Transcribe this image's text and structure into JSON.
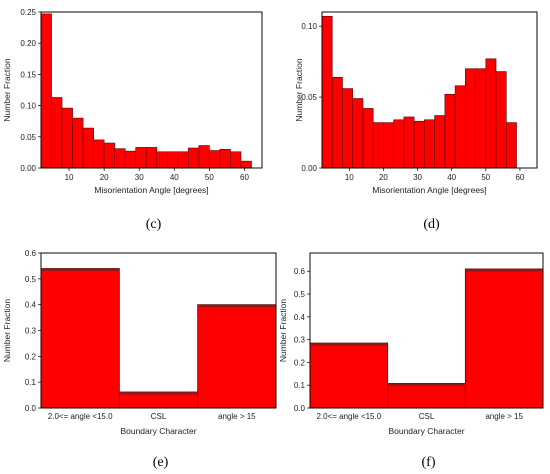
{
  "chart_data": [
    {
      "id": "c",
      "panel_label": "(c)",
      "type": "bar",
      "xlabel": "Misorientation Angle [degrees]",
      "ylabel": "Number Fraction",
      "xlim": [
        2,
        65
      ],
      "ylim": [
        0,
        0.25
      ],
      "xticks": [
        10,
        20,
        30,
        40,
        50,
        60
      ],
      "yticks": [
        0.0,
        0.05,
        0.1,
        0.15,
        0.2,
        0.25
      ],
      "ytick_labels": [
        "0.00",
        "0.05",
        "0.10",
        "0.15",
        "0.20",
        "0.25"
      ],
      "bin_width": 3,
      "x_start": 2,
      "values": [
        0.247,
        0.113,
        0.096,
        0.08,
        0.064,
        0.045,
        0.04,
        0.031,
        0.027,
        0.033,
        0.033,
        0.026,
        0.026,
        0.026,
        0.032,
        0.036,
        0.028,
        0.03,
        0.026,
        0.011
      ],
      "color": "#ff0000"
    },
    {
      "id": "d",
      "panel_label": "(d)",
      "type": "bar",
      "xlabel": "Misorientation Angle [degrees]",
      "ylabel": "Number Fraction",
      "xlim": [
        2,
        65
      ],
      "ylim": [
        0,
        0.11
      ],
      "xticks": [
        10,
        20,
        30,
        40,
        50,
        60
      ],
      "yticks": [
        0.0,
        0.05,
        0.1
      ],
      "ytick_labels": [
        "0.00",
        "0.05",
        "0.10"
      ],
      "bin_width": 3,
      "x_start": 2,
      "values": [
        0.107,
        0.064,
        0.056,
        0.049,
        0.042,
        0.032,
        0.032,
        0.034,
        0.036,
        0.033,
        0.034,
        0.037,
        0.052,
        0.058,
        0.07,
        0.07,
        0.077,
        0.068,
        0.032
      ],
      "color": "#ff0000"
    },
    {
      "id": "e",
      "panel_label": "(e)",
      "type": "bar",
      "xlabel": "Boundary Character",
      "ylabel": "Number Fraction",
      "ylim": [
        0,
        0.6
      ],
      "yticks": [
        0,
        0.1,
        0.2,
        0.3,
        0.4,
        0.5,
        0.6
      ],
      "ytick_labels": [
        "0.0",
        "0.1",
        "0.2",
        "0.3",
        "0.4",
        "0.5",
        "0.6"
      ],
      "categories": [
        "2.0<= angle <15.0",
        "CSL",
        "angle > 15"
      ],
      "values": [
        0.54,
        0.062,
        0.4
      ],
      "color": "#ff0000"
    },
    {
      "id": "f",
      "panel_label": "(f)",
      "type": "bar",
      "xlabel": "Boundary Character",
      "ylabel": "Number Fraction",
      "ylim": [
        0,
        0.68
      ],
      "yticks": [
        0,
        0.1,
        0.2,
        0.3,
        0.4,
        0.5,
        0.6
      ],
      "ytick_labels": [
        "0.0",
        "0.1",
        "0.2",
        "0.3",
        "0.4",
        "0.5",
        "0.6"
      ],
      "categories": [
        "2.0<= angle <15.0",
        "CSL",
        "angle > 15"
      ],
      "values": [
        0.285,
        0.108,
        0.61
      ],
      "color": "#ff0000"
    }
  ]
}
